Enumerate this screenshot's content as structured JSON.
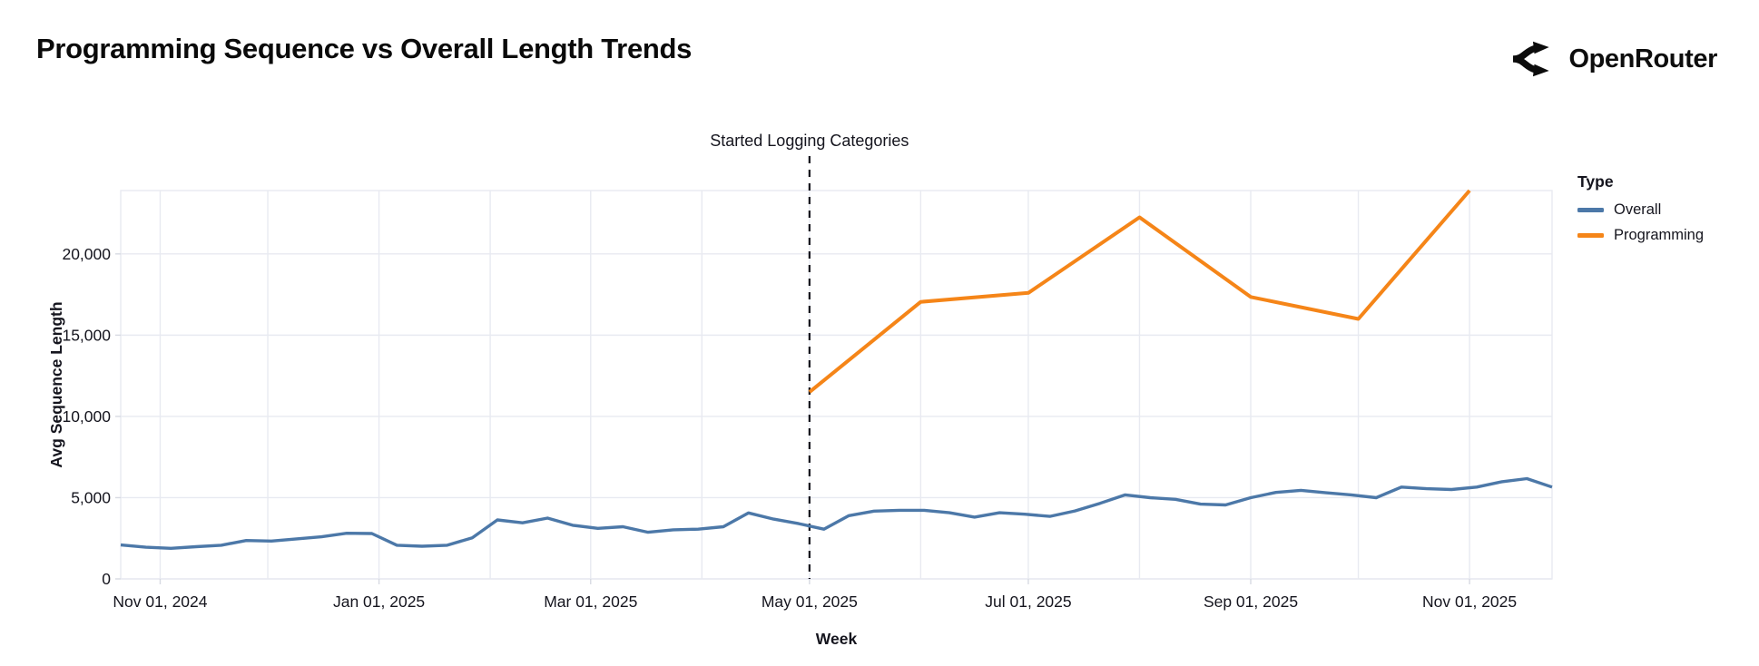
{
  "header": {
    "title": "Programming Sequence vs Overall Length Trends",
    "logo_text": "OpenRouter"
  },
  "colors": {
    "text": "#15151e",
    "title_text": "#0a0a0a",
    "grid": "#e8eaf1",
    "axis": "#d7dae2",
    "annotation_line": "#14141c",
    "overall": "#4c78a8",
    "programming": "#f58518"
  },
  "chart_data": {
    "type": "line",
    "title": "Programming Sequence vs Overall Length Trends",
    "xlabel": "Week",
    "ylabel": "Avg Sequence Length",
    "legend_title": "Type",
    "legend_position": "right",
    "grid": true,
    "x_domain": [
      "2024-10-21",
      "2025-11-24"
    ],
    "ylim": [
      0,
      23900
    ],
    "x_gridline_interval": "month",
    "y_ticks": {
      "values": [
        0,
        5000,
        10000,
        15000,
        20000
      ],
      "labels": [
        "0",
        "5,000",
        "10,000",
        "15,000",
        "20,000"
      ]
    },
    "x_ticks": [
      {
        "date": "2024-11-01",
        "label": "Nov 01, 2024"
      },
      {
        "date": "2025-01-01",
        "label": "Jan 01, 2025"
      },
      {
        "date": "2025-03-01",
        "label": "Mar 01, 2025"
      },
      {
        "date": "2025-05-01",
        "label": "May 01, 2025"
      },
      {
        "date": "2025-07-01",
        "label": "Jul 01, 2025"
      },
      {
        "date": "2025-09-01",
        "label": "Sep 01, 2025"
      },
      {
        "date": "2025-11-01",
        "label": "Nov 01, 2025"
      }
    ],
    "annotation": {
      "label": "Started Logging Categories",
      "date": "2025-05-01"
    },
    "series": [
      {
        "name": "Overall",
        "color": "#4c78a8",
        "stroke_width": 3.4,
        "start_date": "2024-10-21",
        "interval_days": 7,
        "values": [
          2090,
          1950,
          1880,
          1980,
          2070,
          2360,
          2330,
          2460,
          2590,
          2810,
          2790,
          2070,
          2010,
          2070,
          2530,
          3630,
          3450,
          3740,
          3300,
          3110,
          3210,
          2870,
          3020,
          3060,
          3210,
          4060,
          3680,
          3400,
          3060,
          3890,
          4170,
          4220,
          4220,
          4070,
          3800,
          4070,
          3980,
          3850,
          4180,
          4650,
          5170,
          5000,
          4900,
          4600,
          4550,
          5000,
          5320,
          5450,
          5300,
          5170,
          5000,
          5650,
          5550,
          5500,
          5650,
          5980,
          6170,
          5650
        ]
      },
      {
        "name": "Programming",
        "color": "#f58518",
        "stroke_width": 4,
        "dates": [
          "2025-05-01",
          "2025-06-01",
          "2025-07-01",
          "2025-08-01",
          "2025-09-01",
          "2025-10-01",
          "2025-11-01"
        ],
        "values": [
          11500,
          17050,
          17600,
          22250,
          17350,
          16000,
          23900
        ]
      }
    ]
  }
}
